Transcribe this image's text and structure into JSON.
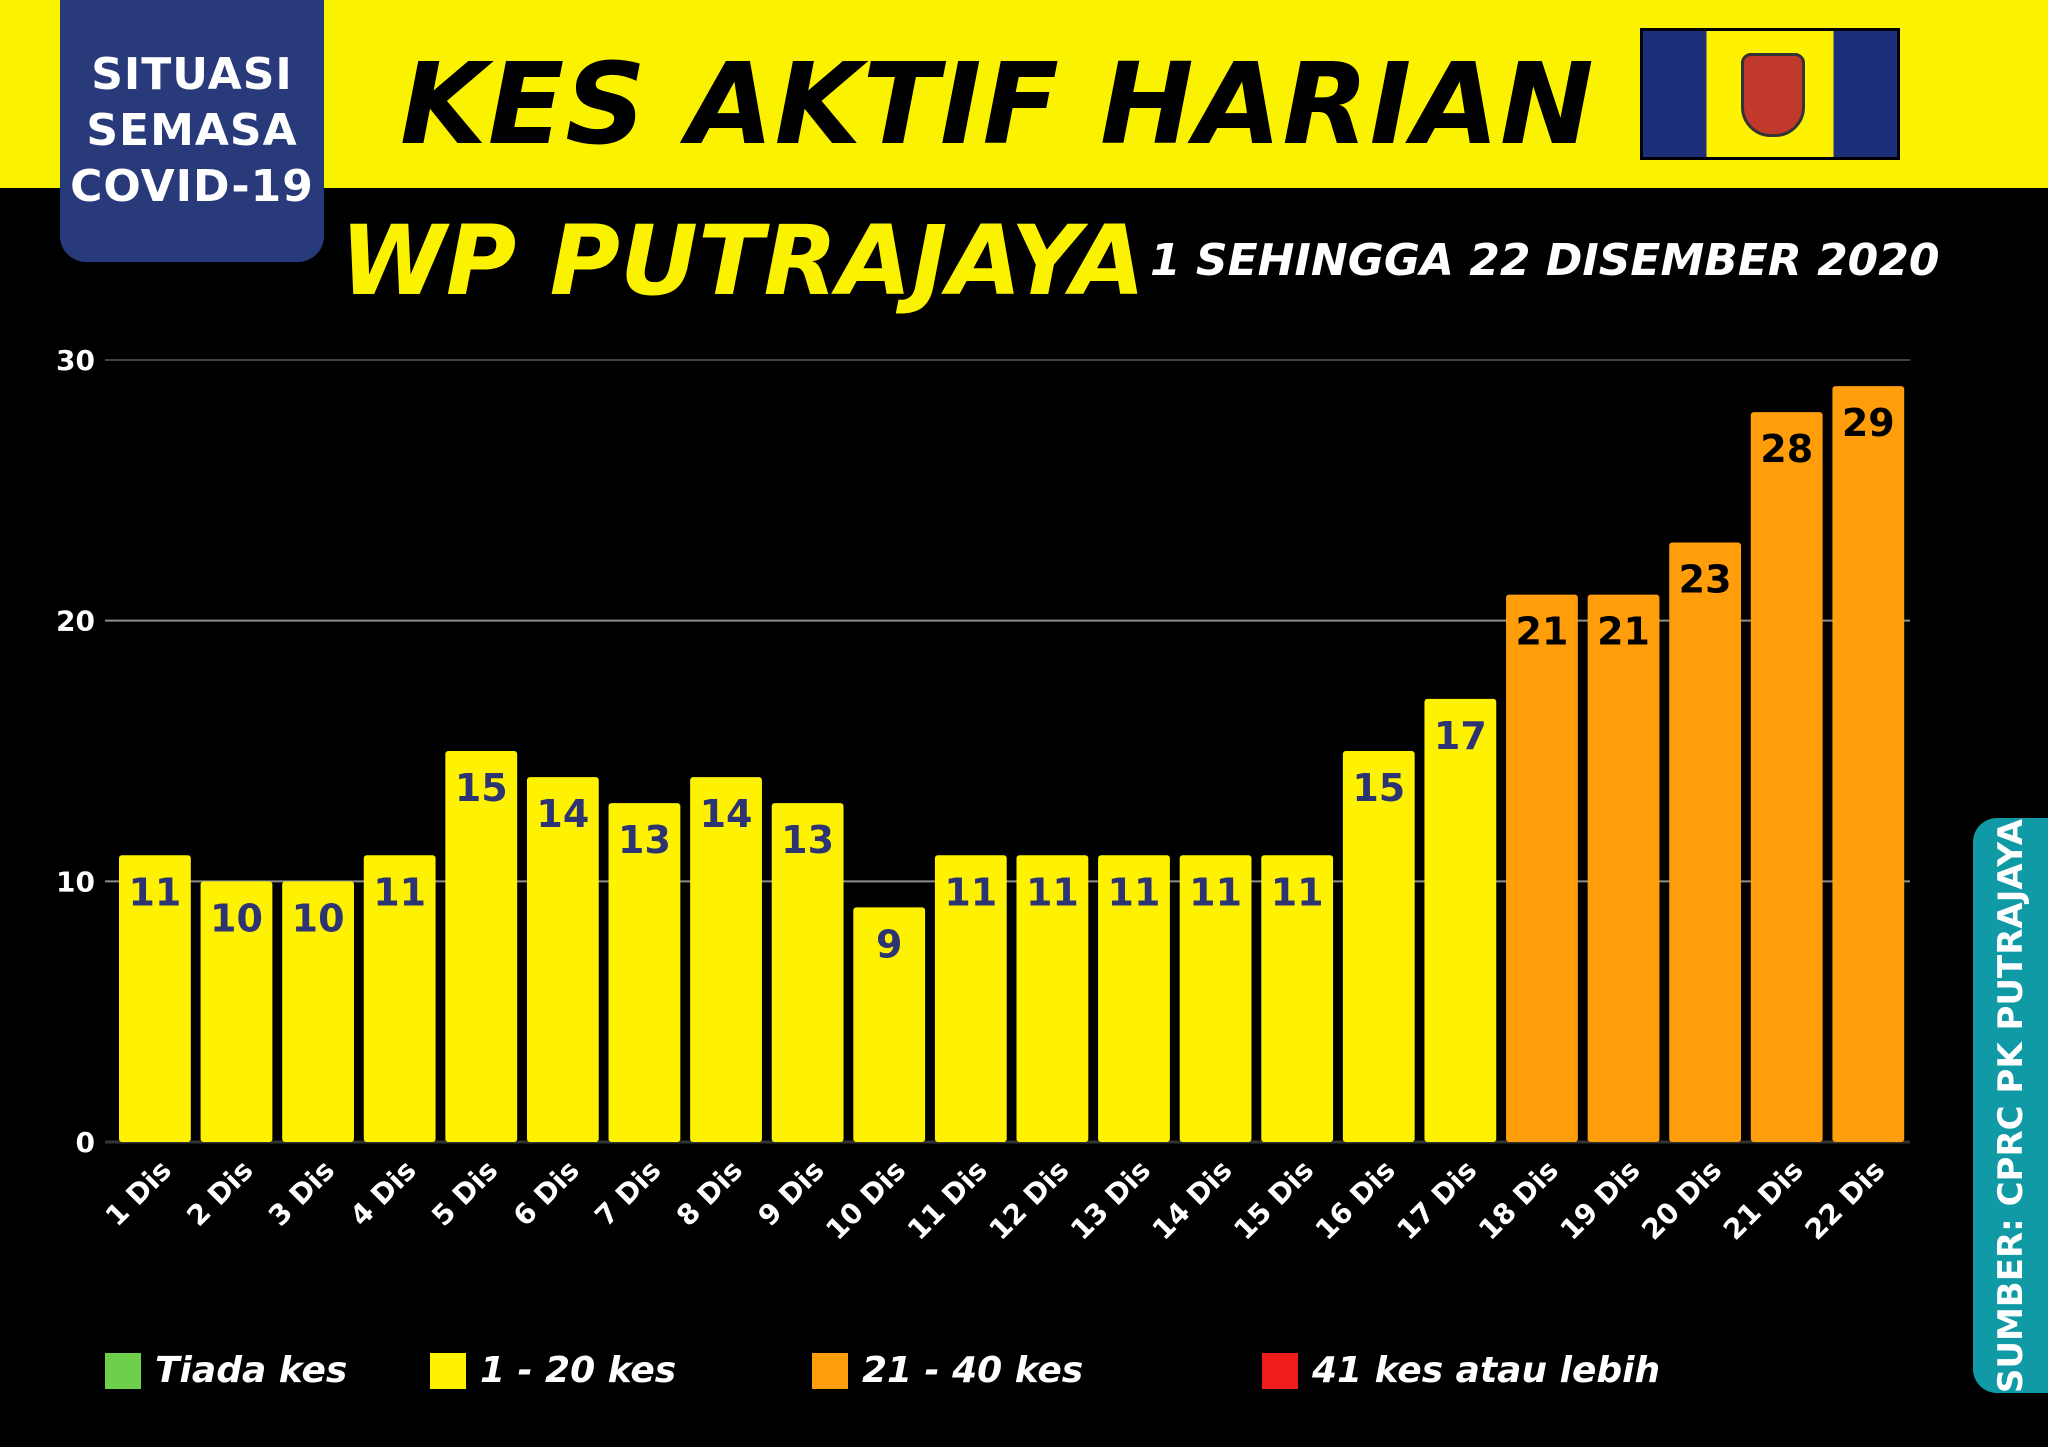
{
  "header": {
    "badge_lines": [
      "SITUASI",
      "SEMASA",
      "COVID-19"
    ],
    "title": "KES AKTIF HARIAN",
    "subtitle": "WP PUTRAJAYA",
    "date_range": "1 SEHINGGA 22 DISEMBER 2020"
  },
  "source": "SUMBER: CPRC PK PUTRAJAYA",
  "colors": {
    "yellow_band": "#fbf200",
    "badge_blue": "#283a7a",
    "bar_yellow": "#fff200",
    "bar_orange": "#ff9e0a",
    "label_navy": "#2c3474",
    "source_teal": "#0f9aa6"
  },
  "legend": [
    {
      "label": "Tiada kes",
      "color": "#6ed04a"
    },
    {
      "label": "1 - 20 kes",
      "color": "#fff200"
    },
    {
      "label": "21 - 40 kes",
      "color": "#ff9e0a"
    },
    {
      "label": "41 kes atau lebih",
      "color": "#ee1c1c"
    }
  ],
  "chart_data": {
    "type": "bar",
    "categories": [
      "1 Dis",
      "2 Dis",
      "3 Dis",
      "4 Dis",
      "5 Dis",
      "6 Dis",
      "7 Dis",
      "8 Dis",
      "9 Dis",
      "10 Dis",
      "11 Dis",
      "12 Dis",
      "13 Dis",
      "14 Dis",
      "15 Dis",
      "16 Dis",
      "17 Dis",
      "18 Dis",
      "19 Dis",
      "20 Dis",
      "21 Dis",
      "22 Dis"
    ],
    "values": [
      11,
      10,
      10,
      11,
      15,
      14,
      13,
      14,
      13,
      9,
      11,
      11,
      11,
      11,
      11,
      15,
      17,
      21,
      21,
      23,
      28,
      29
    ],
    "ylim": [
      0,
      30
    ],
    "yticks": [
      0,
      10,
      20,
      30
    ],
    "grid": true,
    "legend_position": "bottom"
  }
}
